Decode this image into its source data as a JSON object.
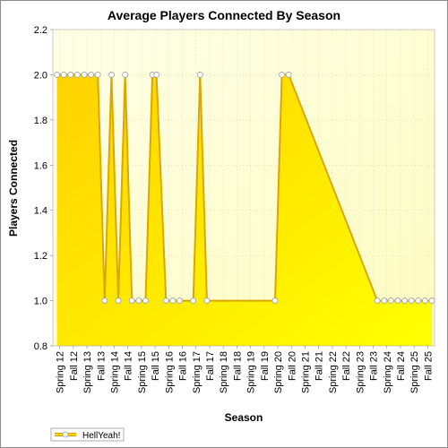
{
  "chart_data": {
    "type": "area",
    "title": "Average Players Connected By Season",
    "xlabel": "Season",
    "ylabel": "Players Connected",
    "ylim": [
      0.8,
      2.2
    ],
    "yticks": [
      0.8,
      1.0,
      1.2,
      1.4,
      1.6,
      1.8,
      2.0,
      2.2
    ],
    "grid": true,
    "legend_position": "bottom-left",
    "categories": [
      "Spring 12",
      "Fall 12",
      "Spring 13",
      "Fall 13",
      "Spring 14",
      "Fall 14",
      "Spring 15",
      "Fall 15",
      "Spring 16",
      "Fall 16",
      "Spring 17",
      "Fall 17",
      "Spring 18",
      "Fall 18",
      "Spring 19",
      "Fall 19",
      "Spring 20",
      "Fall 20",
      "Spring 21",
      "Fall 21",
      "Spring 22",
      "Fall 22",
      "Spring 23",
      "Fall 23",
      "Spring 24",
      "Fall 24",
      "Spring 25",
      "Fall 25"
    ],
    "series": [
      {
        "name": "HellYeah!",
        "color": "#ffd700",
        "points": [
          {
            "x": 0.3,
            "y": 2.0
          },
          {
            "x": 0.8,
            "y": 2.0
          },
          {
            "x": 1.3,
            "y": 2.0
          },
          {
            "x": 1.8,
            "y": 2.0
          },
          {
            "x": 2.3,
            "y": 2.0
          },
          {
            "x": 2.8,
            "y": 2.0
          },
          {
            "x": 3.3,
            "y": 2.0
          },
          {
            "x": 3.8,
            "y": 1.0
          },
          {
            "x": 4.3,
            "y": 2.0
          },
          {
            "x": 4.8,
            "y": 1.0
          },
          {
            "x": 5.3,
            "y": 2.0
          },
          {
            "x": 5.8,
            "y": 1.0
          },
          {
            "x": 6.3,
            "y": 1.0
          },
          {
            "x": 6.8,
            "y": 1.0
          },
          {
            "x": 7.3,
            "y": 2.0
          },
          {
            "x": 7.6,
            "y": 2.0
          },
          {
            "x": 8.3,
            "y": 1.0
          },
          {
            "x": 8.8,
            "y": 1.0
          },
          {
            "x": 9.3,
            "y": 1.0
          },
          {
            "x": 10.3,
            "y": 1.0
          },
          {
            "x": 10.8,
            "y": 2.0
          },
          {
            "x": 11.3,
            "y": 1.0
          },
          {
            "x": 16.3,
            "y": 1.0
          },
          {
            "x": 16.8,
            "y": 2.0
          },
          {
            "x": 17.3,
            "y": 2.0
          },
          {
            "x": 23.8,
            "y": 1.0
          },
          {
            "x": 24.3,
            "y": 1.0
          },
          {
            "x": 24.8,
            "y": 1.0
          },
          {
            "x": 25.3,
            "y": 1.0
          },
          {
            "x": 25.8,
            "y": 1.0
          },
          {
            "x": 26.3,
            "y": 1.0
          },
          {
            "x": 26.8,
            "y": 1.0
          },
          {
            "x": 27.3,
            "y": 1.0
          },
          {
            "x": 27.8,
            "y": 1.0
          }
        ]
      }
    ]
  }
}
